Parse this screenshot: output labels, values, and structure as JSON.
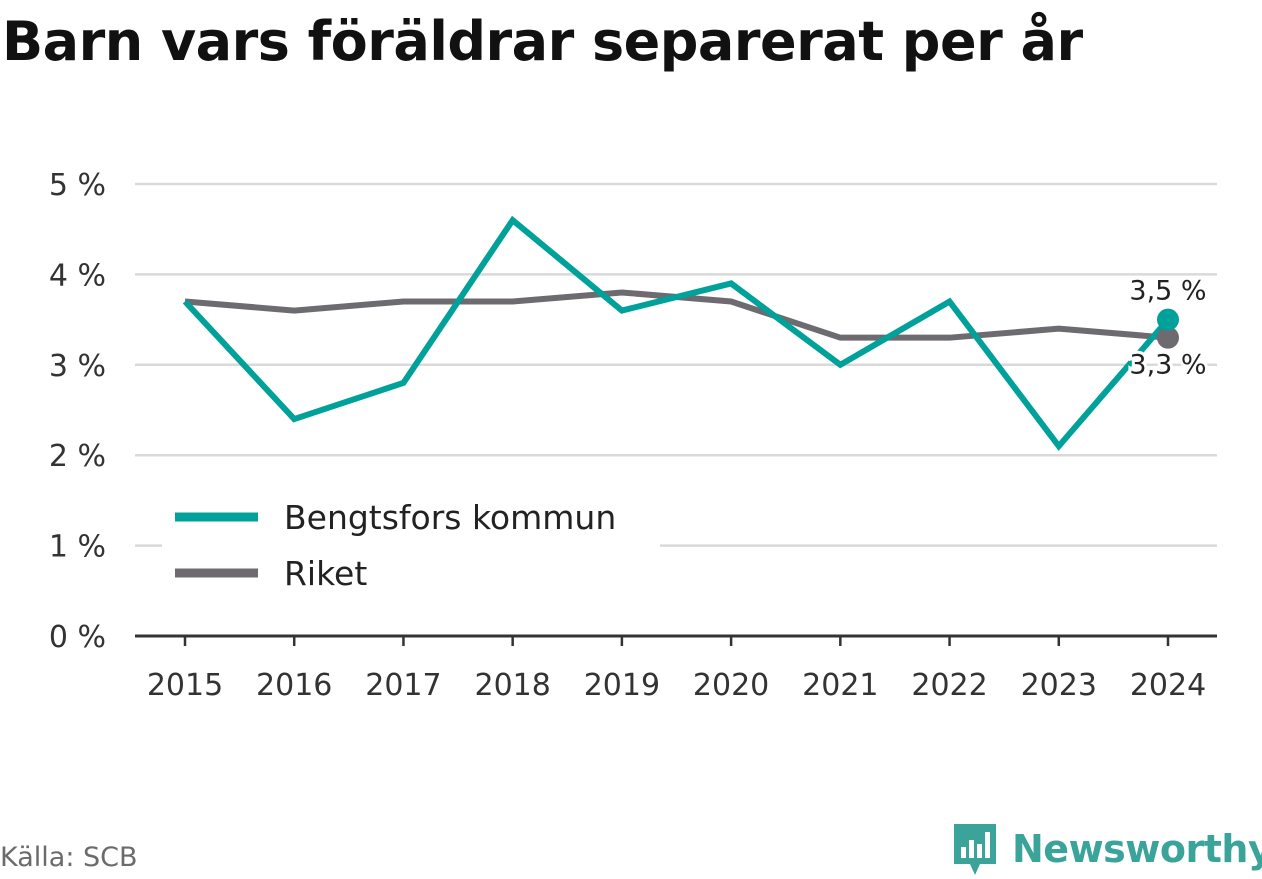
{
  "title": "Barn vars föräldrar separerat per år",
  "source": "Källa: SCB",
  "brand": "Newsworthy",
  "colors": {
    "accent": "#00a19a",
    "national": "#6d6b70",
    "grid": "#d9d9d9",
    "axis": "#333333",
    "brand": "#3aa39a"
  },
  "chart_data": {
    "type": "line",
    "title": "Barn vars föräldrar separerat per år",
    "x": [
      "2015",
      "2016",
      "2017",
      "2018",
      "2019",
      "2020",
      "2021",
      "2022",
      "2023",
      "2024"
    ],
    "series": [
      {
        "name": "Bengtsfors kommun",
        "values": [
          3.7,
          2.4,
          2.8,
          4.6,
          3.6,
          3.9,
          3.0,
          3.7,
          2.1,
          3.5
        ],
        "end_label": "3,5 %"
      },
      {
        "name": "Riket",
        "values": [
          3.7,
          3.6,
          3.7,
          3.7,
          3.8,
          3.7,
          3.3,
          3.3,
          3.4,
          3.3
        ],
        "end_label": "3,3 %"
      }
    ],
    "ylim": [
      0,
      5
    ],
    "yticks": [
      {
        "value": 0,
        "label": "0 %"
      },
      {
        "value": 1,
        "label": "1 %"
      },
      {
        "value": 2,
        "label": "2 %"
      },
      {
        "value": 3,
        "label": "3 %"
      },
      {
        "value": 4,
        "label": "4 %"
      },
      {
        "value": 5,
        "label": "5 %"
      }
    ],
    "grid": true,
    "legend_position": "bottom-left"
  }
}
